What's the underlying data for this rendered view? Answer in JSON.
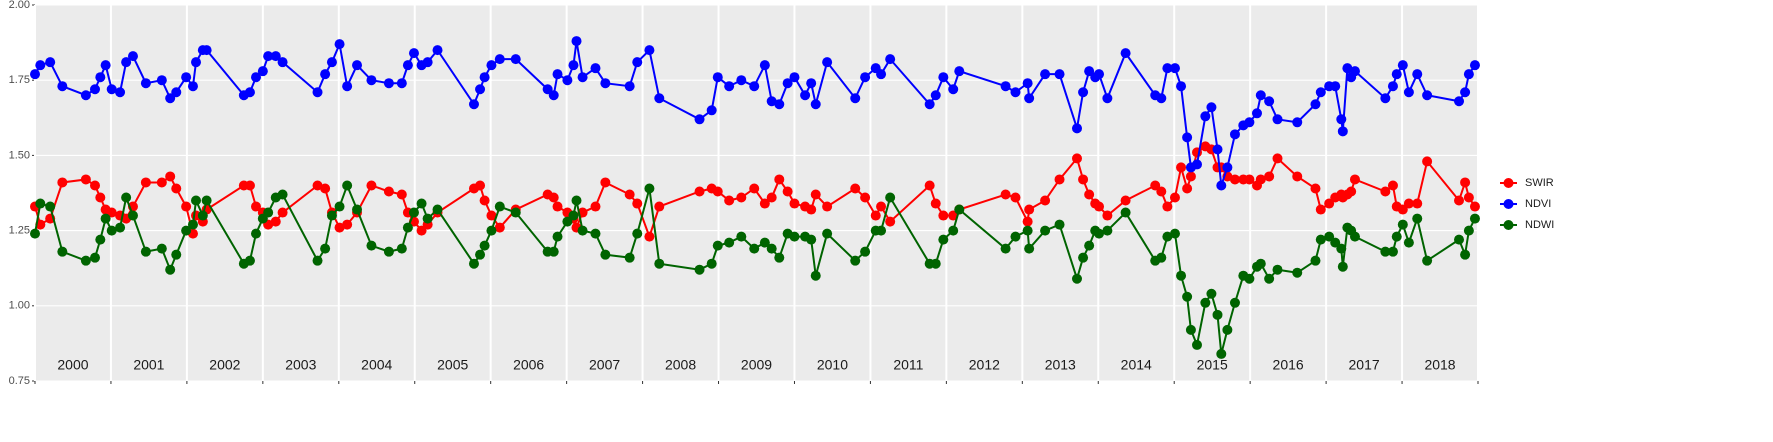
{
  "chart_data": {
    "type": "line",
    "x": [
      2000.0,
      2000.07,
      2000.2,
      2000.36,
      2000.67,
      2000.79,
      2000.86,
      2000.93,
      2001.01,
      2001.12,
      2001.2,
      2001.29,
      2001.46,
      2001.67,
      2001.78,
      2001.86,
      2001.99,
      2002.08,
      2002.12,
      2002.21,
      2002.26,
      2002.75,
      2002.83,
      2002.91,
      2003.0,
      2003.07,
      2003.17,
      2003.26,
      2003.72,
      2003.82,
      2003.91,
      2004.01,
      2004.11,
      2004.24,
      2004.43,
      2004.66,
      2004.83,
      2004.91,
      2004.99,
      2005.09,
      2005.17,
      2005.3,
      2005.78,
      2005.86,
      2005.92,
      2006.01,
      2006.12,
      2006.33,
      2006.75,
      2006.83,
      2006.88,
      2007.01,
      2007.09,
      2007.13,
      2007.21,
      2007.38,
      2007.51,
      2007.83,
      2007.93,
      2008.09,
      2008.22,
      2008.75,
      2008.91,
      2008.99,
      2009.14,
      2009.3,
      2009.47,
      2009.61,
      2009.7,
      2009.8,
      2009.91,
      2010.0,
      2010.14,
      2010.22,
      2010.28,
      2010.43,
      2010.8,
      2010.93,
      2011.07,
      2011.14,
      2011.26,
      2011.78,
      2011.86,
      2011.96,
      2012.09,
      2012.17,
      2012.78,
      2012.91,
      2013.07,
      2013.09,
      2013.3,
      2013.49,
      2013.72,
      2013.8,
      2013.88,
      2013.96,
      2014.01,
      2014.12,
      2014.36,
      2014.75,
      2014.83,
      2014.91,
      2015.01,
      2015.09,
      2015.17,
      2015.22,
      2015.3,
      2015.41,
      2015.49,
      2015.57,
      2015.62,
      2015.7,
      2015.8,
      2015.91,
      2015.99,
      2016.09,
      2016.14,
      2016.25,
      2016.36,
      2016.62,
      2016.86,
      2016.93,
      2017.04,
      2017.12,
      2017.2,
      2017.22,
      2017.28,
      2017.33,
      2017.38,
      2017.78,
      2017.88,
      2017.93,
      2018.01,
      2018.09,
      2018.2,
      2018.33,
      2018.75,
      2018.83,
      2018.88,
      2018.96
    ],
    "series": [
      {
        "name": "SWIR",
        "color": "#ff0000",
        "values": [
          1.33,
          1.27,
          1.29,
          1.41,
          1.42,
          1.4,
          1.36,
          1.32,
          1.31,
          1.3,
          1.29,
          1.33,
          1.41,
          1.41,
          1.43,
          1.39,
          1.33,
          1.24,
          1.3,
          1.28,
          1.32,
          1.4,
          1.4,
          1.33,
          1.31,
          1.27,
          1.28,
          1.31,
          1.4,
          1.39,
          1.31,
          1.26,
          1.27,
          1.31,
          1.4,
          1.38,
          1.37,
          1.31,
          1.28,
          1.25,
          1.27,
          1.31,
          1.39,
          1.4,
          1.35,
          1.3,
          1.26,
          1.32,
          1.37,
          1.36,
          1.33,
          1.31,
          1.29,
          1.26,
          1.31,
          1.33,
          1.41,
          1.37,
          1.34,
          1.23,
          1.33,
          1.38,
          1.39,
          1.38,
          1.35,
          1.36,
          1.39,
          1.34,
          1.36,
          1.42,
          1.38,
          1.34,
          1.33,
          1.32,
          1.37,
          1.33,
          1.39,
          1.36,
          1.3,
          1.33,
          1.28,
          1.4,
          1.34,
          1.3,
          1.3,
          1.32,
          1.37,
          1.36,
          1.28,
          1.32,
          1.35,
          1.42,
          1.49,
          1.42,
          1.37,
          1.34,
          1.33,
          1.3,
          1.35,
          1.4,
          1.38,
          1.33,
          1.36,
          1.46,
          1.39,
          1.43,
          1.51,
          1.53,
          1.52,
          1.46,
          1.46,
          1.43,
          1.42,
          1.42,
          1.42,
          1.4,
          1.42,
          1.43,
          1.49,
          1.43,
          1.39,
          1.32,
          1.34,
          1.36,
          1.37,
          1.36,
          1.37,
          1.38,
          1.42,
          1.38,
          1.4,
          1.33,
          1.32,
          1.34,
          1.34,
          1.48,
          1.35,
          1.41,
          1.36,
          1.33
        ]
      },
      {
        "name": "NDVI",
        "color": "#0000ff",
        "values": [
          1.77,
          1.8,
          1.81,
          1.73,
          1.7,
          1.72,
          1.76,
          1.8,
          1.72,
          1.71,
          1.81,
          1.83,
          1.74,
          1.75,
          1.69,
          1.71,
          1.76,
          1.73,
          1.81,
          1.85,
          1.85,
          1.7,
          1.71,
          1.76,
          1.78,
          1.83,
          1.83,
          1.81,
          1.71,
          1.77,
          1.81,
          1.87,
          1.73,
          1.8,
          1.75,
          1.74,
          1.74,
          1.8,
          1.84,
          1.8,
          1.81,
          1.85,
          1.67,
          1.72,
          1.76,
          1.8,
          1.82,
          1.82,
          1.72,
          1.7,
          1.77,
          1.75,
          1.8,
          1.88,
          1.76,
          1.79,
          1.74,
          1.73,
          1.81,
          1.85,
          1.69,
          1.62,
          1.65,
          1.76,
          1.73,
          1.75,
          1.73,
          1.8,
          1.68,
          1.67,
          1.74,
          1.76,
          1.7,
          1.74,
          1.67,
          1.81,
          1.69,
          1.76,
          1.79,
          1.77,
          1.82,
          1.67,
          1.7,
          1.76,
          1.72,
          1.78,
          1.73,
          1.71,
          1.74,
          1.69,
          1.77,
          1.77,
          1.59,
          1.71,
          1.78,
          1.76,
          1.77,
          1.69,
          1.84,
          1.7,
          1.69,
          1.79,
          1.79,
          1.73,
          1.56,
          1.46,
          1.47,
          1.63,
          1.66,
          1.52,
          1.4,
          1.46,
          1.57,
          1.6,
          1.61,
          1.64,
          1.7,
          1.68,
          1.62,
          1.61,
          1.67,
          1.71,
          1.73,
          1.73,
          1.62,
          1.58,
          1.79,
          1.76,
          1.78,
          1.69,
          1.73,
          1.77,
          1.8,
          1.71,
          1.77,
          1.7,
          1.68,
          1.71,
          1.77,
          1.8
        ]
      },
      {
        "name": "NDWI",
        "color": "#006400",
        "values": [
          1.24,
          1.34,
          1.33,
          1.18,
          1.15,
          1.16,
          1.22,
          1.29,
          1.25,
          1.26,
          1.36,
          1.3,
          1.18,
          1.19,
          1.12,
          1.17,
          1.25,
          1.27,
          1.35,
          1.3,
          1.35,
          1.14,
          1.15,
          1.24,
          1.29,
          1.31,
          1.36,
          1.37,
          1.15,
          1.19,
          1.3,
          1.33,
          1.4,
          1.32,
          1.2,
          1.18,
          1.19,
          1.26,
          1.31,
          1.34,
          1.29,
          1.32,
          1.14,
          1.17,
          1.2,
          1.25,
          1.33,
          1.31,
          1.18,
          1.18,
          1.23,
          1.28,
          1.3,
          1.35,
          1.25,
          1.24,
          1.17,
          1.16,
          1.24,
          1.39,
          1.14,
          1.12,
          1.14,
          1.2,
          1.21,
          1.23,
          1.19,
          1.21,
          1.19,
          1.16,
          1.24,
          1.23,
          1.23,
          1.22,
          1.1,
          1.24,
          1.15,
          1.18,
          1.25,
          1.25,
          1.36,
          1.14,
          1.14,
          1.22,
          1.25,
          1.32,
          1.19,
          1.23,
          1.25,
          1.19,
          1.25,
          1.27,
          1.09,
          1.16,
          1.2,
          1.25,
          1.24,
          1.25,
          1.31,
          1.15,
          1.16,
          1.23,
          1.24,
          1.1,
          1.03,
          0.92,
          0.87,
          1.01,
          1.04,
          0.97,
          0.84,
          0.92,
          1.01,
          1.1,
          1.09,
          1.13,
          1.14,
          1.09,
          1.12,
          1.11,
          1.15,
          1.22,
          1.23,
          1.21,
          1.19,
          1.13,
          1.26,
          1.25,
          1.23,
          1.18,
          1.18,
          1.23,
          1.27,
          1.21,
          1.29,
          1.15,
          1.22,
          1.17,
          1.25,
          1.29
        ]
      }
    ],
    "xlim": [
      2000,
      2019
    ],
    "xgrid": [
      2000,
      2001,
      2002,
      2003,
      2004,
      2005,
      2006,
      2007,
      2008,
      2009,
      2010,
      2011,
      2012,
      2013,
      2014,
      2015,
      2016,
      2017,
      2018,
      2019
    ],
    "xticks": [
      {
        "value": 2000.5,
        "label": "2000"
      },
      {
        "value": 2001.5,
        "label": "2001"
      },
      {
        "value": 2002.5,
        "label": "2002"
      },
      {
        "value": 2003.5,
        "label": "2003"
      },
      {
        "value": 2004.5,
        "label": "2004"
      },
      {
        "value": 2005.5,
        "label": "2005"
      },
      {
        "value": 2006.5,
        "label": "2006"
      },
      {
        "value": 2007.5,
        "label": "2007"
      },
      {
        "value": 2008.5,
        "label": "2008"
      },
      {
        "value": 2009.5,
        "label": "2009"
      },
      {
        "value": 2010.5,
        "label": "2010"
      },
      {
        "value": 2011.5,
        "label": "2011"
      },
      {
        "value": 2012.5,
        "label": "2012"
      },
      {
        "value": 2013.5,
        "label": "2013"
      },
      {
        "value": 2014.5,
        "label": "2014"
      },
      {
        "value": 2015.5,
        "label": "2015"
      },
      {
        "value": 2016.5,
        "label": "2016"
      },
      {
        "value": 2017.5,
        "label": "2017"
      },
      {
        "value": 2018.5,
        "label": "2018"
      }
    ],
    "ylim": [
      0.75,
      2.0
    ],
    "yticks": [
      {
        "value": 0.75,
        "label": "0.75"
      },
      {
        "value": 1.0,
        "label": "1.00"
      },
      {
        "value": 1.25,
        "label": "1.25"
      },
      {
        "value": 1.5,
        "label": "1.50"
      },
      {
        "value": 1.75,
        "label": "1.75"
      },
      {
        "value": 2.0,
        "label": "2.00"
      }
    ],
    "grid": true,
    "legend": "right"
  }
}
